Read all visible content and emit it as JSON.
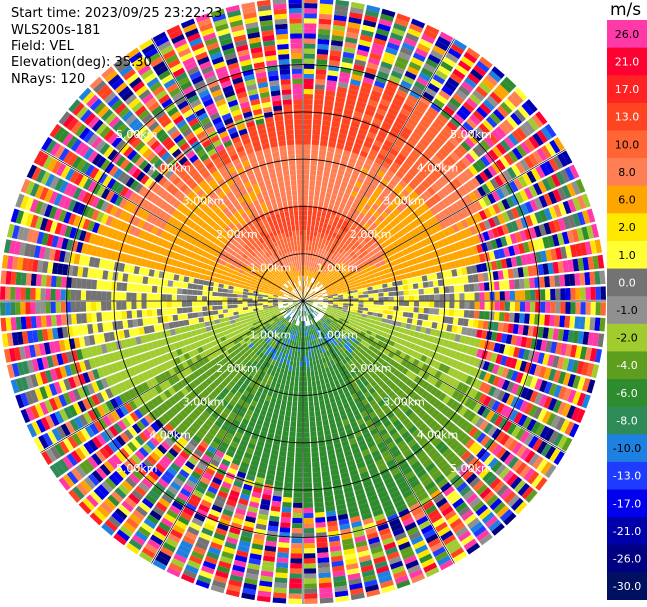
{
  "header": {
    "start_time": "Start time: 2023/09/25 23:22:23",
    "site": "WLS200s-181",
    "field": "Field: VEL",
    "elevation": "Elevation(deg): 35.30",
    "nrays": "NRays: 120"
  },
  "chart_data": {
    "type": "heatmap",
    "projection": "polar",
    "field": "VEL",
    "units": "m/s",
    "range_rings_km": [
      1.0,
      2.0,
      3.0,
      4.0,
      5.0
    ],
    "range_ring_labels": [
      "1.00km",
      "2.00km",
      "3.00km",
      "4.00km",
      "5.00km"
    ],
    "max_range_km": 5.0,
    "nrays": 120,
    "colorbar": {
      "title": "m/s",
      "tick_labels": [
        "26.0",
        "21.0",
        "17.0",
        "13.0",
        "10.0",
        "8.0",
        "6.0",
        "2.0",
        "1.0",
        "0.0",
        "-1.0",
        "-2.0",
        "-4.0",
        "-6.0",
        "-8.0",
        "-10.0",
        "-13.0",
        "-17.0",
        "-21.0",
        "-26.0",
        "-30.0"
      ],
      "colors": [
        "#ff3aa8",
        "#ff0033",
        "#ff2222",
        "#ff4422",
        "#ff6633",
        "#ff7f55",
        "#ffa500",
        "#ffe800",
        "#ffff33",
        "#737373",
        "#909090",
        "#a0cc30",
        "#5e9e1e",
        "#2e8b2e",
        "#2e8b57",
        "#1e80e0",
        "#1e3cff",
        "#0000ee",
        "#0000aa",
        "#000080",
        "#001060"
      ]
    },
    "pattern": {
      "north_sector": "positive 6 to 13 m/s (orange/red), yellow 1-6 m/s band at mid-range",
      "south_sector": "negative -1 to -8 m/s (green), blue patches near center",
      "east_west_axis": "near 0 m/s (grey)",
      "outer_ranges": "noisy, all colors (beyond ~3.5 km)"
    }
  }
}
